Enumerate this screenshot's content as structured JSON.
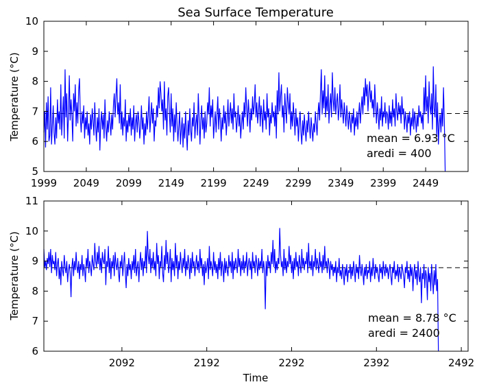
{
  "chart_data": [
    {
      "type": "line",
      "title": "Sea Surface Temperature",
      "xlabel": "",
      "ylabel": "Temperature ($^\\circ$C)",
      "ylabel_display": "Temperature (",
      "ylabel_unit": "°C)",
      "xlim": [
        1999,
        2499
      ],
      "ylim": [
        5,
        10
      ],
      "xticks": [
        1999,
        2049,
        2099,
        2149,
        2199,
        2249,
        2299,
        2349,
        2399,
        2449
      ],
      "xtick_labels": [
        "1999",
        "2049",
        "2099",
        "2149",
        "2199",
        "2249",
        "2299",
        "2349",
        "2399",
        "2449"
      ],
      "yticks": [
        5,
        6,
        7,
        8,
        9,
        10
      ],
      "ytick_labels": [
        "5",
        "6",
        "7",
        "8",
        "9",
        "10"
      ],
      "mean": 6.93,
      "annotation_mean": "mean = 6.93 °C",
      "annotation_aredi": "aredi = 400",
      "series": [
        {
          "color": "#0000ff",
          "x_start": 1999,
          "x_step": 1,
          "values": [
            6.3,
            7.0,
            5.8,
            7.3,
            6.4,
            7.5,
            6.0,
            6.2,
            7.8,
            5.9,
            6.5,
            7.2,
            6.3,
            5.9,
            6.8,
            6.1,
            7.4,
            6.6,
            7.0,
            6.4,
            7.9,
            6.2,
            6.9,
            7.5,
            6.1,
            8.4,
            6.8,
            7.6,
            6.0,
            6.9,
            8.2,
            6.7,
            7.4,
            6.9,
            6.0,
            7.6,
            7.0,
            7.9,
            6.5,
            7.3,
            6.6,
            7.7,
            8.1,
            6.8,
            6.3,
            7.0,
            6.6,
            7.2,
            6.1,
            6.8,
            6.4,
            7.0,
            6.2,
            6.6,
            5.9,
            6.9,
            6.4,
            7.1,
            6.7,
            6.2,
            7.3,
            6.5,
            6.0,
            6.8,
            6.3,
            7.1,
            5.7,
            6.6,
            7.0,
            6.4,
            6.9,
            6.1,
            7.4,
            6.5,
            6.0,
            6.7,
            6.3,
            7.0,
            6.6,
            6.2,
            6.9,
            6.4,
            7.2,
            7.6,
            6.8,
            7.5,
            8.1,
            6.9,
            7.3,
            6.6,
            7.9,
            6.4,
            7.0,
            6.2,
            6.8,
            6.5,
            7.4,
            6.0,
            6.7,
            6.3,
            6.9,
            6.5,
            7.1,
            6.2,
            6.8,
            6.4,
            7.2,
            6.0,
            6.6,
            6.9,
            6.3,
            7.0,
            6.7,
            6.1,
            6.5,
            7.2,
            6.4,
            6.8,
            5.9,
            6.6,
            6.2,
            7.0,
            6.4,
            6.9,
            7.5,
            6.3,
            6.8,
            7.3,
            6.6,
            7.1,
            6.0,
            6.7,
            6.5,
            7.2,
            6.8,
            7.8,
            7.1,
            8.0,
            7.6,
            7.0,
            7.4,
            6.4,
            8.0,
            6.7,
            7.1,
            6.2,
            7.5,
            7.8,
            6.9,
            6.3,
            7.6,
            6.5,
            7.1,
            6.0,
            6.9,
            6.3,
            7.3,
            6.6,
            6.0,
            6.5,
            7.0,
            5.9,
            6.4,
            6.8,
            5.8,
            6.6,
            6.1,
            7.0,
            6.3,
            5.7,
            6.7,
            6.2,
            7.1,
            6.4,
            6.0,
            6.8,
            6.5,
            7.3,
            6.1,
            6.6,
            6.9,
            6.2,
            7.6,
            6.8,
            5.9,
            6.7,
            7.2,
            6.4,
            6.8,
            6.1,
            7.0,
            6.3,
            6.6,
            7.3,
            6.9,
            7.8,
            6.5,
            7.2,
            6.8,
            7.4,
            6.1,
            6.6,
            7.0,
            6.3,
            6.9,
            7.5,
            6.4,
            7.1,
            6.7,
            6.0,
            6.8,
            6.4,
            7.2,
            6.6,
            7.0,
            6.2,
            6.7,
            7.4,
            6.5,
            6.9,
            7.3,
            6.6,
            7.1,
            6.4,
            7.6,
            6.8,
            7.0,
            6.3,
            6.7,
            7.2,
            6.5,
            6.9,
            6.1,
            6.6,
            7.0,
            6.4,
            7.3,
            6.8,
            7.8,
            7.1,
            6.5,
            7.4,
            6.9,
            6.3,
            7.1,
            6.7,
            7.5,
            6.9,
            7.2,
            7.9,
            6.8,
            7.3,
            6.6,
            7.0,
            7.5,
            6.5,
            7.2,
            6.9,
            6.3,
            7.4,
            6.7,
            7.0,
            6.4,
            7.6,
            6.8,
            7.1,
            6.2,
            6.9,
            6.6,
            7.3,
            6.8,
            7.0,
            6.5,
            7.2,
            6.1,
            7.7,
            6.9,
            8.3,
            7.0,
            7.5,
            7.9,
            6.8,
            7.2,
            6.3,
            7.6,
            7.1,
            6.6,
            7.8,
            7.3,
            6.9,
            7.6,
            6.4,
            7.0,
            6.5,
            7.3,
            6.8,
            6.2,
            7.1,
            6.5,
            6.8,
            6.0,
            6.6,
            7.0,
            6.3,
            5.9,
            6.7,
            6.2,
            6.9,
            6.4,
            6.0,
            6.7,
            6.3,
            7.0,
            6.5,
            6.1,
            6.8,
            6.4,
            6.0,
            6.6,
            6.3,
            7.0,
            6.6,
            6.2,
            6.9,
            7.3,
            6.7,
            7.6,
            8.4,
            6.9,
            7.7,
            7.1,
            8.2,
            6.8,
            7.5,
            7.0,
            7.9,
            6.6,
            7.2,
            7.6,
            6.8,
            8.3,
            7.4,
            7.0,
            7.8,
            6.9,
            7.3,
            7.6,
            6.7,
            7.1,
            7.9,
            6.8,
            7.4,
            7.0,
            6.6,
            7.3,
            6.9,
            6.5,
            7.2,
            6.8,
            6.4,
            7.0,
            6.7,
            6.3,
            6.9,
            6.6,
            7.1,
            6.2,
            6.8,
            6.5,
            7.0,
            6.4,
            6.9,
            7.3,
            6.6,
            7.1,
            7.5,
            6.9,
            7.8,
            7.2,
            8.1,
            7.5,
            7.9,
            7.0,
            7.6,
            8.0,
            7.3,
            7.7,
            7.1,
            7.4,
            6.8,
            7.9,
            7.2,
            6.6,
            7.3,
            6.9,
            6.4,
            7.1,
            6.7,
            7.5,
            6.5,
            7.0,
            6.8,
            7.3,
            6.6,
            7.0,
            6.9,
            6.4,
            7.2,
            6.6,
            7.0,
            6.5,
            7.4,
            6.8,
            7.1,
            6.5,
            7.6,
            7.0,
            6.7,
            7.3,
            6.9,
            7.2,
            6.6,
            7.5,
            6.9,
            7.1,
            6.4,
            7.0,
            6.7,
            6.3,
            6.9,
            6.6,
            7.0,
            6.2,
            6.8,
            6.5,
            7.1,
            6.4,
            7.0,
            6.7,
            6.3,
            6.9,
            6.5,
            7.2,
            6.8,
            7.0,
            6.6,
            6.9,
            6.4,
            7.8,
            6.9,
            8.2,
            7.0,
            7.5,
            6.6,
            8.0,
            7.2,
            6.9,
            7.6,
            6.4,
            8.5,
            7.1,
            6.8,
            7.9,
            6.2,
            7.3,
            5.9,
            6.6,
            6.9,
            6.3,
            7.1,
            6.5,
            7.8,
            6.7,
            5.0
          ]
        }
      ]
    },
    {
      "type": "line",
      "title": "",
      "xlabel": "Time",
      "ylabel": "Temperature ($^\\circ$C)",
      "ylabel_display": "Temperature (",
      "ylabel_unit": "°C)",
      "xlim": [
        2000,
        2500
      ],
      "ylim": [
        6,
        11
      ],
      "xticks": [
        2092,
        2192,
        2292,
        2392,
        2492
      ],
      "xtick_labels": [
        "2092",
        "2192",
        "2292",
        "2392",
        "2492"
      ],
      "yticks": [
        6,
        7,
        8,
        9,
        10,
        11
      ],
      "ytick_labels": [
        "6",
        "7",
        "8",
        "9",
        "10",
        "11"
      ],
      "mean": 8.78,
      "annotation_mean": "mean = 8.78 °C",
      "annotation_aredi": "aredi = 2400",
      "series": [
        {
          "color": "#0000ff",
          "x_start": 2000,
          "x_step": 1,
          "values": [
            9.4,
            8.8,
            9.0,
            8.7,
            9.1,
            8.9,
            9.3,
            8.8,
            9.4,
            8.6,
            9.2,
            8.9,
            9.0,
            8.7,
            9.3,
            8.5,
            8.9,
            9.1,
            8.4,
            8.8,
            8.2,
            9.0,
            8.7,
            8.5,
            9.2,
            8.8,
            8.6,
            9.0,
            8.3,
            8.7,
            8.9,
            8.6,
            7.8,
            8.8,
            9.1,
            8.5,
            9.0,
            8.7,
            9.3,
            8.8,
            8.6,
            9.0,
            8.4,
            8.9,
            8.7,
            9.2,
            8.5,
            8.9,
            8.7,
            8.3,
            9.1,
            8.8,
            9.4,
            8.6,
            9.0,
            8.8,
            8.5,
            9.2,
            8.9,
            8.7,
            9.6,
            9.0,
            8.8,
            9.3,
            8.9,
            9.5,
            8.7,
            9.1,
            8.6,
            9.3,
            9.0,
            8.9,
            9.4,
            8.2,
            9.0,
            8.8,
            9.5,
            8.6,
            9.1,
            8.4,
            9.0,
            8.8,
            9.2,
            8.5,
            9.3,
            8.9,
            8.7,
            9.1,
            8.6,
            8.3,
            9.0,
            8.8,
            9.2,
            8.5,
            8.9,
            9.3,
            8.6,
            8.1,
            8.9,
            8.5,
            9.1,
            8.7,
            8.9,
            8.4,
            9.0,
            8.7,
            9.2,
            8.6,
            9.4,
            8.5,
            8.8,
            9.0,
            8.3,
            8.9,
            9.3,
            8.7,
            9.1,
            8.5,
            9.0,
            8.8,
            9.5,
            8.6,
            10.0,
            9.2,
            8.9,
            9.4,
            8.6,
            9.1,
            8.8,
            9.3,
            8.7,
            9.0,
            8.5,
            9.6,
            8.9,
            9.2,
            8.4,
            9.0,
            8.8,
            9.5,
            8.6,
            8.3,
            9.2,
            8.7,
            9.7,
            8.9,
            9.3,
            8.6,
            8.9,
            9.4,
            8.3,
            9.1,
            8.7,
            9.0,
            8.5,
            9.6,
            8.8,
            9.2,
            8.4,
            9.0,
            8.7,
            9.3,
            8.9,
            8.6,
            9.1,
            8.8,
            9.4,
            8.5,
            9.0,
            8.7,
            9.2,
            8.9,
            8.4,
            9.1,
            8.6,
            9.3,
            8.8,
            9.0,
            8.5,
            8.9,
            9.2,
            8.7,
            9.0,
            8.6,
            9.4,
            8.8,
            9.1,
            8.5,
            8.9,
            8.2,
            9.0,
            8.6,
            8.8,
            9.1,
            8.4,
            9.5,
            8.7,
            9.0,
            8.8,
            8.5,
            9.3,
            8.7,
            9.0,
            8.6,
            8.9,
            8.4,
            9.1,
            8.7,
            9.3,
            8.5,
            9.0,
            8.8,
            8.3,
            9.1,
            8.6,
            9.0,
            8.7,
            8.5,
            9.2,
            8.8,
            9.0,
            8.6,
            9.3,
            8.4,
            9.0,
            8.7,
            9.1,
            8.9,
            8.6,
            9.4,
            8.8,
            9.1,
            8.5,
            9.0,
            8.7,
            9.2,
            8.6,
            9.0,
            8.8,
            9.3,
            8.5,
            8.9,
            9.1,
            8.7,
            9.0,
            8.4,
            9.3,
            8.8,
            9.0,
            8.6,
            9.2,
            8.9,
            8.5,
            9.1,
            8.7,
            9.0,
            8.8,
            9.4,
            8.6,
            9.0,
            8.7,
            7.4,
            9.0,
            8.5,
            9.2,
            8.8,
            9.0,
            8.6,
            9.3,
            8.9,
            9.7,
            8.8,
            9.4,
            8.6,
            9.0,
            8.7,
            9.1,
            8.9,
            10.1,
            9.2,
            8.8,
            9.0,
            8.5,
            9.4,
            8.7,
            9.1,
            8.6,
            9.0,
            8.8,
            9.5,
            8.9,
            9.2,
            8.6,
            9.0,
            8.4,
            9.1,
            8.7,
            9.3,
            8.8,
            9.0,
            8.5,
            9.2,
            8.9,
            8.6,
            9.4,
            8.8,
            9.1,
            8.7,
            9.0,
            8.9,
            9.3,
            8.6,
            9.6,
            8.8,
            9.0,
            8.7,
            9.2,
            8.5,
            9.0,
            8.8,
            9.4,
            8.7,
            9.1,
            8.9,
            8.6,
            9.3,
            8.8,
            9.0,
            8.6,
            9.2,
            8.7,
            9.5,
            8.8,
            9.0,
            8.6,
            9.1,
            8.9,
            8.4,
            9.0,
            8.7,
            8.9,
            8.5,
            8.8,
            8.6,
            9.0,
            8.3,
            8.8,
            8.6,
            9.1,
            8.5,
            8.7,
            8.4,
            8.9,
            8.6,
            8.2,
            8.8,
            8.5,
            8.9,
            8.3,
            8.7,
            8.6,
            8.9,
            8.4,
            8.8,
            8.5,
            9.0,
            8.7,
            8.3,
            8.9,
            8.6,
            8.8,
            8.4,
            9.2,
            8.7,
            8.5,
            8.9,
            8.6,
            8.2,
            8.8,
            8.5,
            8.9,
            8.4,
            8.7,
            8.6,
            9.0,
            8.3,
            8.8,
            8.5,
            9.1,
            8.7,
            8.4,
            8.9,
            8.6,
            8.8,
            8.5,
            8.3,
            8.9,
            8.6,
            8.8,
            8.4,
            9.0,
            8.7,
            8.5,
            8.9,
            8.6,
            8.8,
            8.4,
            8.7,
            8.9,
            8.5,
            8.2,
            8.8,
            8.6,
            9.0,
            8.4,
            8.7,
            8.5,
            8.9,
            8.3,
            8.8,
            8.6,
            8.4,
            8.9,
            8.7,
            8.5,
            8.1,
            8.8,
            8.6,
            9.0,
            8.4,
            8.7,
            8.3,
            8.9,
            8.5,
            8.8,
            8.0,
            8.6,
            8.9,
            8.4,
            8.7,
            8.2,
            9.0,
            8.5,
            8.3,
            8.8,
            7.6,
            8.6,
            8.4,
            8.9,
            8.1,
            8.7,
            8.5,
            7.7,
            8.8,
            8.3,
            8.6,
            8.0,
            8.9,
            8.4,
            7.9,
            8.7,
            8.2,
            8.9,
            8.0,
            8.4,
            6.0
          ]
        }
      ]
    }
  ]
}
